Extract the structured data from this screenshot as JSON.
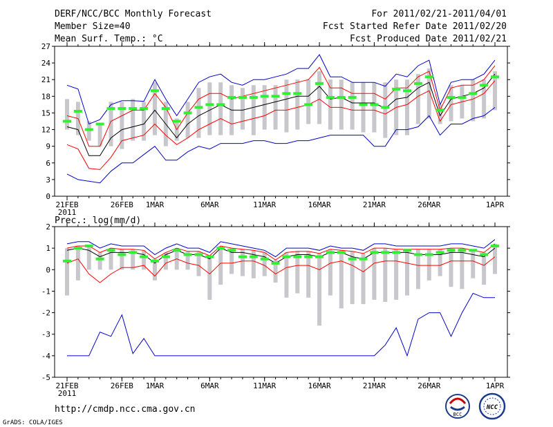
{
  "header": {
    "title": "DERF/NCC/BCC Monthly Forecast",
    "member_size": "Member Size=40",
    "variable": "Mean Surf. Temp.: °C",
    "forecast_range": "For 2011/02/21-2011/04/01",
    "start_date": "Fcst Started Refer Date 2011/02/20",
    "produced_date": "Fcst Produced Date 2011/02/21"
  },
  "footer": {
    "url": "http://cmdp.ncc.cma.gov.cn",
    "grads": "GrADS: COLA/IGES",
    "logo_bcc": "BCC",
    "logo_ncc": "NCC"
  },
  "colors": {
    "max_min": "#0000cc",
    "spread": "#ff0000",
    "mean": "#000000",
    "obs": "#33ee33",
    "box": "#c8c8cc"
  },
  "chart_data": [
    {
      "type": "line",
      "title": "Mean Surf. Temp.: °C",
      "ylim": [
        0,
        27
      ],
      "yticks": [
        0,
        3,
        6,
        9,
        12,
        15,
        18,
        21,
        24,
        27
      ],
      "xticks": [
        {
          "day": 1,
          "label": "21FEB",
          "sub": "2011"
        },
        {
          "day": 6,
          "label": "26FEB"
        },
        {
          "day": 9,
          "label": "1MAR"
        },
        {
          "day": 14,
          "label": "6MAR"
        },
        {
          "day": 19,
          "label": "11MAR"
        },
        {
          "day": 24,
          "label": "16MAR"
        },
        {
          "day": 29,
          "label": "21MAR"
        },
        {
          "day": 34,
          "label": "26MAR"
        },
        {
          "day": 40,
          "label": "1APR"
        }
      ],
      "x": [
        1,
        2,
        3,
        4,
        5,
        6,
        7,
        8,
        9,
        10,
        11,
        12,
        13,
        14,
        15,
        16,
        17,
        18,
        19,
        20,
        21,
        22,
        23,
        24,
        25,
        26,
        27,
        28,
        29,
        30,
        31,
        32,
        33,
        34,
        35,
        36,
        37,
        38,
        39,
        40
      ],
      "series": [
        {
          "name": "max",
          "values": [
            20,
            19.3,
            13,
            13.8,
            16.5,
            17.2,
            17.2,
            17.1,
            21,
            17.5,
            14.5,
            17.5,
            20.5,
            21.5,
            22,
            20.5,
            20,
            21,
            21,
            21.5,
            22,
            23,
            23,
            25.5,
            21.5,
            21.5,
            20.5,
            20.5,
            20.5,
            19.8,
            22,
            21.5,
            23.5,
            24.5,
            16.5,
            20.5,
            21,
            21,
            22,
            24.5
          ]
        },
        {
          "name": "upper",
          "values": [
            14.5,
            14,
            9,
            9,
            13.5,
            14.5,
            15.5,
            15.5,
            18.5,
            16,
            12,
            15,
            17.5,
            18.5,
            18.5,
            17.5,
            18,
            18.5,
            19,
            19.5,
            20,
            20.5,
            21,
            23.2,
            19.5,
            19.5,
            18.5,
            18.5,
            18.5,
            17.5,
            19.5,
            19.5,
            21.5,
            22.5,
            15.5,
            19.5,
            20,
            20,
            21,
            23.5
          ]
        },
        {
          "name": "mean",
          "values": [
            12.5,
            12,
            7.3,
            7.3,
            10.5,
            12,
            12.5,
            13,
            15.5,
            13,
            10.5,
            13,
            14.5,
            15.5,
            16.5,
            15.5,
            15.5,
            16,
            16.5,
            17,
            17.5,
            18,
            18,
            19.8,
            17.5,
            17.8,
            16.8,
            16.8,
            16.8,
            15.8,
            17.5,
            17.8,
            19.5,
            20.5,
            14.5,
            17.5,
            18,
            18.5,
            19.5,
            22
          ]
        },
        {
          "name": "lower",
          "values": [
            9.3,
            8.5,
            5,
            4.8,
            7,
            10,
            10.5,
            11,
            13,
            11,
            9.3,
            10.5,
            12,
            13,
            14,
            13,
            13.5,
            14,
            14.5,
            15.5,
            15.5,
            16,
            16.5,
            17.5,
            16,
            16,
            15.5,
            15.5,
            15.5,
            14.8,
            16,
            16.5,
            18,
            19,
            13.5,
            16.5,
            17,
            17.5,
            18.5,
            20.8
          ]
        },
        {
          "name": "min",
          "values": [
            4,
            3,
            2.7,
            2.4,
            4.5,
            6,
            6,
            7.5,
            9,
            6.5,
            6.5,
            8,
            9,
            8.5,
            9.5,
            9.5,
            9.5,
            10,
            10,
            9.5,
            9.5,
            10,
            10,
            10.5,
            11,
            11,
            11,
            11,
            9,
            9,
            12,
            12,
            12.5,
            14.5,
            11,
            13,
            13,
            14,
            14.5,
            16
          ]
        },
        {
          "name": "observed",
          "values": [
            13.5,
            15.3,
            12,
            13,
            15.8,
            15.8,
            15.8,
            15.8,
            19,
            15.8,
            13.5,
            15,
            16,
            16.5,
            16.5,
            17.8,
            17.8,
            17.8,
            18,
            18,
            18.5,
            18.5,
            16.5,
            20.3,
            17.8,
            17.8,
            17.8,
            16.5,
            16.5,
            16,
            19.3,
            19,
            20.3,
            21.5,
            15.5,
            17.8,
            17.8,
            18.5,
            20,
            21.5
          ]
        }
      ],
      "boxes": {
        "lo": [
          12,
          11,
          10,
          9,
          9,
          8.5,
          10,
          10,
          11,
          9,
          10,
          10.5,
          10.5,
          11,
          11,
          11,
          12,
          11,
          12,
          12,
          11.5,
          12,
          13,
          13,
          12,
          12,
          12,
          11.5,
          11.5,
          10.5,
          11,
          11,
          13,
          14,
          13,
          13.5,
          14,
          13.5,
          14,
          15.5
        ],
        "hi": [
          17.5,
          17,
          13.5,
          13,
          17,
          17,
          17.5,
          17,
          20.5,
          17,
          14,
          17,
          19.5,
          20.5,
          20.5,
          20,
          19.5,
          20,
          20,
          20,
          21,
          21,
          21,
          22.5,
          21,
          21,
          20.5,
          20.5,
          20.5,
          20.5,
          21,
          21,
          22,
          23,
          16.5,
          20,
          20,
          21,
          21,
          22.5
        ]
      }
    },
    {
      "type": "line",
      "title": "Prec.: log(mm/d)",
      "ylim": [
        -5,
        2
      ],
      "yticks": [
        -5,
        -4,
        -3,
        -2,
        -1,
        0,
        1,
        2
      ],
      "xticks": [
        {
          "day": 1,
          "label": "21FEB",
          "sub": "2011"
        },
        {
          "day": 6,
          "label": "26FEB"
        },
        {
          "day": 9,
          "label": "1MAR"
        },
        {
          "day": 14,
          "label": "6MAR"
        },
        {
          "day": 19,
          "label": "11MAR"
        },
        {
          "day": 24,
          "label": "16MAR"
        },
        {
          "day": 29,
          "label": "21MAR"
        },
        {
          "day": 34,
          "label": "26MAR"
        },
        {
          "day": 40,
          "label": "1APR"
        }
      ],
      "x": [
        1,
        2,
        3,
        4,
        5,
        6,
        7,
        8,
        9,
        10,
        11,
        12,
        13,
        14,
        15,
        16,
        17,
        18,
        19,
        20,
        21,
        22,
        23,
        24,
        25,
        26,
        27,
        28,
        29,
        30,
        31,
        32,
        33,
        34,
        35,
        36,
        37,
        38,
        39,
        40
      ],
      "series": [
        {
          "name": "max",
          "values": [
            1.2,
            1.3,
            1.3,
            1.0,
            1.2,
            1.1,
            1.1,
            1.1,
            0.7,
            1.0,
            1.2,
            1.0,
            1.0,
            0.8,
            1.3,
            1.2,
            1.1,
            1.0,
            0.9,
            0.6,
            1.0,
            1.0,
            1.0,
            0.9,
            1.1,
            1.0,
            1.0,
            0.9,
            1.2,
            1.2,
            1.1,
            1.1,
            1.1,
            1.1,
            1.1,
            1.2,
            1.2,
            1.1,
            1.0,
            1.4
          ]
        },
        {
          "name": "upper",
          "values": [
            1.0,
            1.1,
            1.1,
            0.8,
            1.0,
            0.95,
            0.95,
            0.9,
            0.5,
            0.8,
            1.0,
            0.85,
            0.85,
            0.65,
            1.1,
            1.0,
            0.95,
            0.9,
            0.8,
            0.45,
            0.8,
            0.85,
            0.85,
            0.75,
            0.95,
            0.9,
            0.85,
            0.75,
            1.0,
            1.0,
            0.95,
            0.95,
            0.95,
            0.95,
            0.95,
            1.0,
            1.0,
            0.9,
            0.8,
            1.2
          ]
        },
        {
          "name": "mean",
          "values": [
            0.9,
            1.0,
            0.9,
            0.6,
            0.8,
            0.8,
            0.8,
            0.7,
            0.3,
            0.7,
            0.9,
            0.7,
            0.7,
            0.5,
            1.0,
            0.8,
            0.8,
            0.7,
            0.6,
            0.3,
            0.6,
            0.7,
            0.7,
            0.6,
            0.8,
            0.8,
            0.6,
            0.5,
            0.8,
            0.8,
            0.8,
            0.8,
            0.7,
            0.7,
            0.7,
            0.8,
            0.8,
            0.7,
            0.6,
            1.0
          ]
        },
        {
          "name": "lower",
          "values": [
            0.3,
            0.5,
            -0.2,
            -0.6,
            -0.2,
            0.1,
            0.1,
            0.2,
            -0.3,
            0.3,
            0.5,
            0.3,
            0.2,
            -0.2,
            0.3,
            0.3,
            0.4,
            0.4,
            0.2,
            -0.2,
            0.1,
            0.2,
            0.2,
            0.0,
            0.3,
            0.4,
            0.2,
            -0.1,
            0.3,
            0.4,
            0.4,
            0.3,
            0.2,
            0.2,
            0.2,
            0.4,
            0.4,
            0.4,
            0.2,
            0.6
          ]
        },
        {
          "name": "min",
          "values": [
            -4,
            -4,
            -4,
            -2.9,
            -3.1,
            -2.1,
            -3.9,
            -3.2,
            -4,
            -4,
            -4,
            -4,
            -4,
            -4,
            -4,
            -4,
            -4,
            -4,
            -4,
            -4,
            -4,
            -4,
            -4,
            -4,
            -4,
            -4,
            -4,
            -4,
            -4,
            -3.5,
            -2.7,
            -4,
            -2.3,
            -2,
            -2,
            -3.1,
            -2.0,
            -1.1,
            -1.3,
            -1.3
          ]
        },
        {
          "name": "observed",
          "values": [
            0.4,
            1.0,
            1.1,
            0.5,
            0.9,
            0.7,
            0.8,
            0.6,
            0.4,
            0.6,
            0.9,
            0.7,
            0.7,
            0.6,
            1.0,
            0.9,
            0.6,
            0.6,
            0.5,
            0.3,
            0.6,
            0.6,
            0.6,
            0.6,
            0.8,
            0.8,
            0.5,
            0.5,
            0.8,
            0.8,
            0.8,
            0.9,
            0.7,
            0.7,
            0.8,
            0.9,
            0.9,
            0.9,
            0.7,
            1.1
          ]
        }
      ],
      "boxes": {
        "lo": [
          -1.2,
          -0.5,
          0,
          0,
          0,
          0,
          0,
          0,
          -0.5,
          0,
          0,
          0,
          -0.3,
          -1.4,
          -0.7,
          -0.2,
          -0.3,
          -0.4,
          -0.3,
          -0.6,
          -1.3,
          -1.1,
          -1.3,
          -2.6,
          -1.2,
          -1.8,
          -1.6,
          -1.6,
          -1.4,
          -1.5,
          -1.4,
          -1.2,
          -0.9,
          -0.5,
          -0.3,
          -0.8,
          -0.9,
          -0.4,
          -0.7,
          -0.2
        ]
      }
    }
  ]
}
